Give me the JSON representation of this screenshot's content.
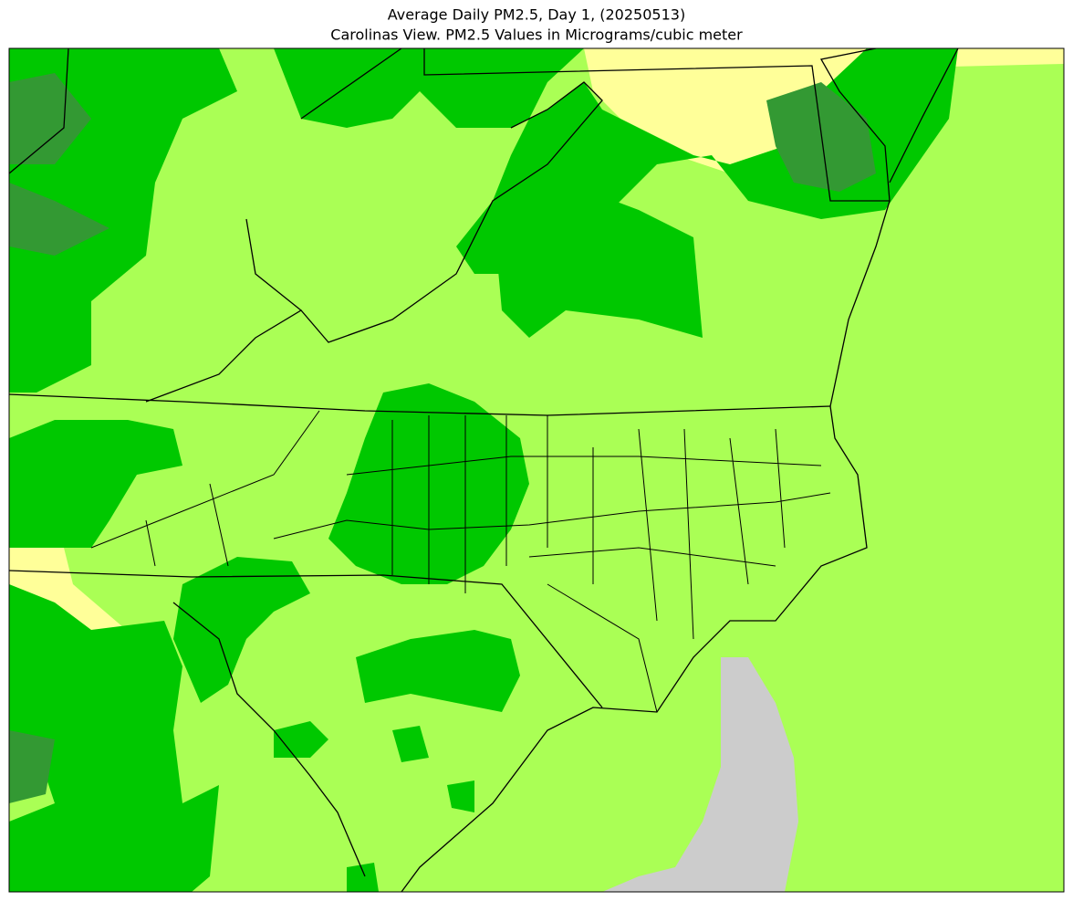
{
  "header": {
    "title": "Average Daily PM2.5, Day 1, (20250513)",
    "subtitle": "Carolinas View. PM2.5 Values in Micrograms/cubic meter"
  }
}
